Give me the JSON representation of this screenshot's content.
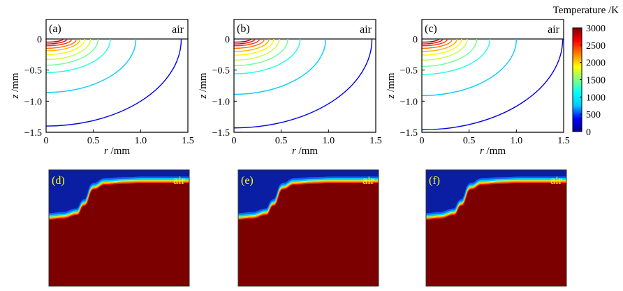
{
  "chart_data": [
    {
      "type": "line",
      "panel_label": "(a)",
      "region_label": "air",
      "xlabel": "r /mm",
      "ylabel": "z /mm",
      "xlim": [
        0,
        1.5
      ],
      "ylim": [
        -1.5,
        0
      ],
      "xticks": [
        "0",
        "0.5",
        "1.0",
        "1.5"
      ],
      "yticks": [
        "0",
        "-0.5",
        "-1.0",
        "-1.5"
      ],
      "contours": [
        {
          "temperature": 2900,
          "r0": 0.18,
          "z0": 0.05
        },
        {
          "temperature": 2700,
          "r0": 0.22,
          "z0": 0.08
        },
        {
          "temperature": 2500,
          "r0": 0.27,
          "z0": 0.11
        },
        {
          "temperature": 2300,
          "r0": 0.32,
          "z0": 0.15
        },
        {
          "temperature": 2100,
          "r0": 0.36,
          "z0": 0.19
        },
        {
          "temperature": 1900,
          "r0": 0.41,
          "z0": 0.25
        },
        {
          "temperature": 1700,
          "r0": 0.47,
          "z0": 0.33
        },
        {
          "temperature": 1450,
          "r0": 0.55,
          "z0": 0.42
        },
        {
          "temperature": 1200,
          "r0": 0.68,
          "z0": 0.54
        },
        {
          "temperature": 800,
          "r0": 0.95,
          "z0": 0.86
        },
        {
          "temperature": 300,
          "r0": 1.43,
          "z0": 1.4
        }
      ]
    },
    {
      "type": "line",
      "panel_label": "(b)",
      "region_label": "air",
      "xlabel": "r /mm",
      "ylabel": "z /mm",
      "xlim": [
        0,
        1.5
      ],
      "ylim": [
        -1.5,
        0
      ],
      "xticks": [
        "0",
        "0.5",
        "1.0",
        "1.5"
      ],
      "yticks": [
        "0",
        "-0.5",
        "-1.0",
        "-1.5"
      ],
      "contours": [
        {
          "temperature": 2900,
          "r0": 0.18,
          "z0": 0.05
        },
        {
          "temperature": 2700,
          "r0": 0.22,
          "z0": 0.08
        },
        {
          "temperature": 2500,
          "r0": 0.27,
          "z0": 0.11
        },
        {
          "temperature": 2300,
          "r0": 0.32,
          "z0": 0.15
        },
        {
          "temperature": 2100,
          "r0": 0.37,
          "z0": 0.2
        },
        {
          "temperature": 1900,
          "r0": 0.42,
          "z0": 0.26
        },
        {
          "temperature": 1700,
          "r0": 0.48,
          "z0": 0.34
        },
        {
          "temperature": 1450,
          "r0": 0.57,
          "z0": 0.43
        },
        {
          "temperature": 1200,
          "r0": 0.7,
          "z0": 0.56
        },
        {
          "temperature": 800,
          "r0": 0.97,
          "z0": 0.89
        },
        {
          "temperature": 300,
          "r0": 1.46,
          "z0": 1.43
        }
      ]
    },
    {
      "type": "line",
      "panel_label": "(c)",
      "region_label": "air",
      "xlabel": "r /mm",
      "ylabel": "z /mm",
      "xlim": [
        0,
        1.5
      ],
      "ylim": [
        -1.5,
        0
      ],
      "xticks": [
        "0",
        "0.5",
        "1.0",
        "1.5"
      ],
      "yticks": [
        "0",
        "-0.5",
        "-1.0",
        "-1.5"
      ],
      "contours": [
        {
          "temperature": 2900,
          "r0": 0.18,
          "z0": 0.05
        },
        {
          "temperature": 2700,
          "r0": 0.22,
          "z0": 0.08
        },
        {
          "temperature": 2500,
          "r0": 0.27,
          "z0": 0.11
        },
        {
          "temperature": 2300,
          "r0": 0.32,
          "z0": 0.15
        },
        {
          "temperature": 2100,
          "r0": 0.37,
          "z0": 0.2
        },
        {
          "temperature": 1900,
          "r0": 0.42,
          "z0": 0.26
        },
        {
          "temperature": 1700,
          "r0": 0.48,
          "z0": 0.34
        },
        {
          "temperature": 1450,
          "r0": 0.58,
          "z0": 0.44
        },
        {
          "temperature": 1200,
          "r0": 0.72,
          "z0": 0.57
        },
        {
          "temperature": 800,
          "r0": 1.0,
          "z0": 0.91
        },
        {
          "temperature": 300,
          "r0": 1.49,
          "z0": 1.46
        }
      ]
    },
    {
      "type": "heatmap",
      "panel_label": "(d)",
      "region_label": "air",
      "interface_profile": [
        0.58,
        0.59,
        0.62,
        0.7,
        0.84,
        0.88,
        0.89,
        0.895,
        0.895,
        0.895,
        0.895
      ],
      "profile_r": [
        0,
        0.15,
        0.3,
        0.38,
        0.48,
        0.6,
        0.8,
        1.0,
        1.2,
        1.4,
        1.5
      ]
    },
    {
      "type": "heatmap",
      "panel_label": "(e)",
      "region_label": "air",
      "interface_profile": [
        0.58,
        0.59,
        0.62,
        0.7,
        0.84,
        0.88,
        0.89,
        0.895,
        0.895,
        0.895,
        0.895
      ],
      "profile_r": [
        0,
        0.15,
        0.3,
        0.38,
        0.48,
        0.6,
        0.8,
        1.0,
        1.2,
        1.4,
        1.5
      ]
    },
    {
      "type": "heatmap",
      "panel_label": "(f)",
      "region_label": "air",
      "interface_profile": [
        0.58,
        0.59,
        0.62,
        0.7,
        0.84,
        0.88,
        0.89,
        0.895,
        0.895,
        0.895,
        0.895
      ],
      "profile_r": [
        0,
        0.15,
        0.3,
        0.38,
        0.48,
        0.6,
        0.8,
        1.0,
        1.2,
        1.4,
        1.5
      ]
    }
  ],
  "colorbar": {
    "title": "Temperature /K",
    "min": 0,
    "max": 3000,
    "ticks": [
      "3000",
      "2500",
      "2000",
      "1500",
      "1000",
      "500",
      "0"
    ],
    "colors": [
      "#00008f",
      "#0000ff",
      "#00c8ff",
      "#00ffff",
      "#80ff80",
      "#ffff00",
      "#ff8000",
      "#ff0000",
      "#800000"
    ]
  },
  "heatmap_colors": {
    "air": "#0a1ea3",
    "metal": "#7d0000"
  }
}
